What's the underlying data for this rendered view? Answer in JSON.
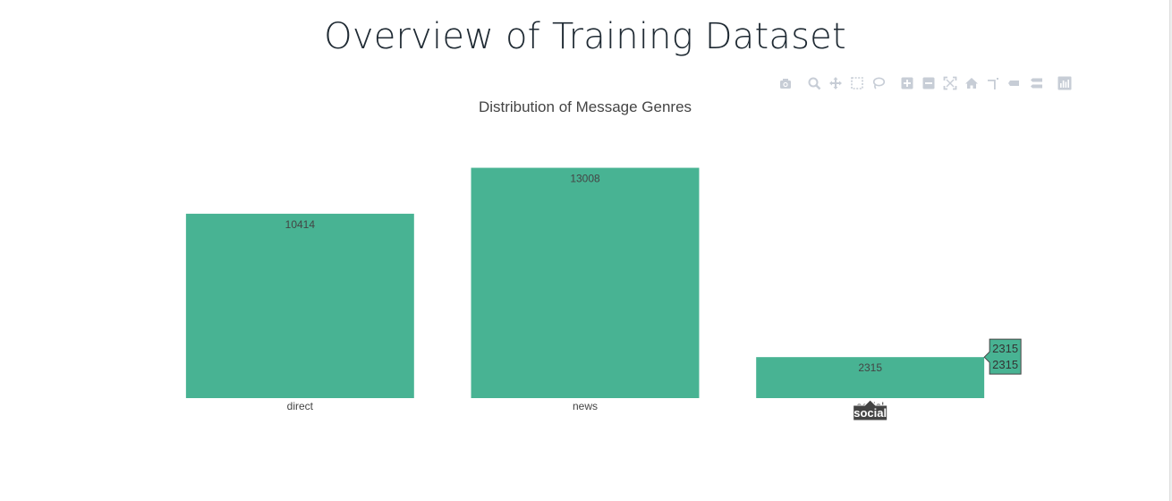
{
  "page": {
    "title": "Overview of Training Dataset"
  },
  "modebar": {
    "buttons": [
      {
        "name": "camera-icon"
      },
      {
        "name": "zoom-icon"
      },
      {
        "name": "pan-icon"
      },
      {
        "name": "box-select-icon"
      },
      {
        "name": "lasso-select-icon"
      },
      {
        "name": "zoom-in-icon"
      },
      {
        "name": "zoom-out-icon"
      },
      {
        "name": "autoscale-icon"
      },
      {
        "name": "reset-axes-icon"
      },
      {
        "name": "spike-lines-icon"
      },
      {
        "name": "hover-closest-icon"
      },
      {
        "name": "hover-compare-icon"
      },
      {
        "name": "plotly-logo-icon"
      }
    ],
    "color": "#c7cdd6"
  },
  "chart_data": {
    "type": "bar",
    "title": "Distribution of Message Genres",
    "categories": [
      "direct",
      "news",
      "social"
    ],
    "values": [
      10414,
      13008,
      2315
    ],
    "xlabel": "",
    "ylabel": "",
    "ylim": [
      0,
      13693
    ],
    "grid": false,
    "legend": "none",
    "bar_color": "#48b393",
    "hover": {
      "category": "social",
      "y_label": "2315",
      "text_label": "2315"
    }
  }
}
